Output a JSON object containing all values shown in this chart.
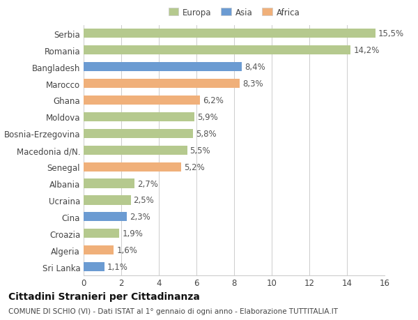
{
  "categories": [
    "Sri Lanka",
    "Algeria",
    "Croazia",
    "Cina",
    "Ucraina",
    "Albania",
    "Senegal",
    "Macedonia d/N.",
    "Bosnia-Erzegovina",
    "Moldova",
    "Ghana",
    "Marocco",
    "Bangladesh",
    "Romania",
    "Serbia"
  ],
  "values": [
    1.1,
    1.6,
    1.9,
    2.3,
    2.5,
    2.7,
    5.2,
    5.5,
    5.8,
    5.9,
    6.2,
    8.3,
    8.4,
    14.2,
    15.5
  ],
  "labels": [
    "1,1%",
    "1,6%",
    "1,9%",
    "2,3%",
    "2,5%",
    "2,7%",
    "5,2%",
    "5,5%",
    "5,8%",
    "5,9%",
    "6,2%",
    "8,3%",
    "8,4%",
    "14,2%",
    "15,5%"
  ],
  "colors": [
    "#6b9bd2",
    "#f0b07a",
    "#b5c98e",
    "#6b9bd2",
    "#b5c98e",
    "#b5c98e",
    "#f0b07a",
    "#b5c98e",
    "#b5c98e",
    "#b5c98e",
    "#f0b07a",
    "#f0b07a",
    "#6b9bd2",
    "#b5c98e",
    "#b5c98e"
  ],
  "legend_labels": [
    "Europa",
    "Asia",
    "Africa"
  ],
  "legend_colors": [
    "#b5c98e",
    "#6b9bd2",
    "#f0b07a"
  ],
  "title1": "Cittadini Stranieri per Cittadinanza",
  "title2": "COMUNE DI SCHIO (VI) - Dati ISTAT al 1° gennaio di ogni anno - Elaborazione TUTTITALIA.IT",
  "xlim": [
    0,
    16
  ],
  "xticks": [
    0,
    2,
    4,
    6,
    8,
    10,
    12,
    14,
    16
  ],
  "bg_color": "#ffffff",
  "grid_color": "#cccccc",
  "bar_height": 0.55,
  "label_fontsize": 8.5,
  "tick_fontsize": 8.5,
  "title1_fontsize": 10,
  "title2_fontsize": 7.5
}
